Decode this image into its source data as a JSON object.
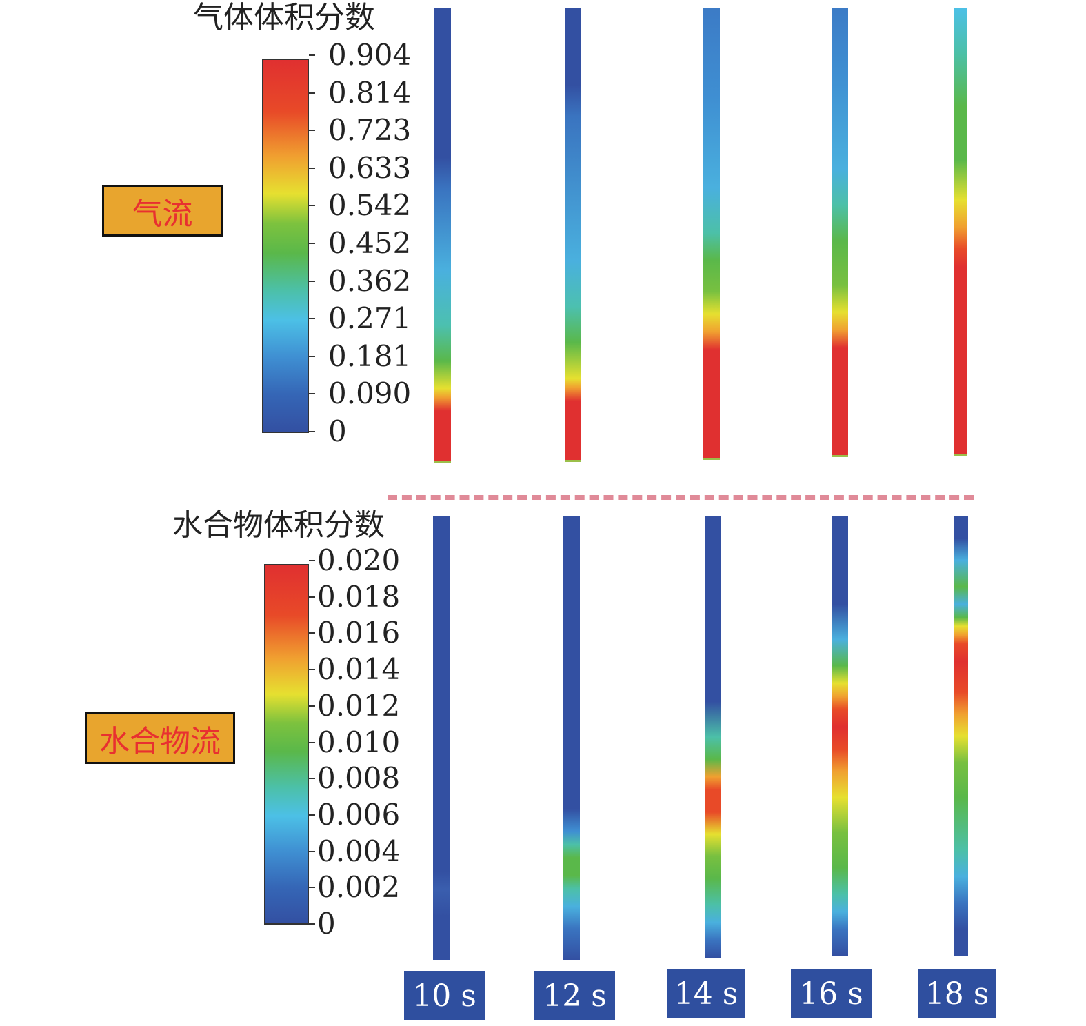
{
  "gas_panel": {
    "title": "气体体积分数",
    "tag": "气流",
    "ticks": [
      "0.904",
      "0.814",
      "0.723",
      "0.633",
      "0.542",
      "0.452",
      "0.362",
      "0.271",
      "0.181",
      "0.090",
      "0"
    ]
  },
  "hydrate_panel": {
    "title": "水合物体积分数",
    "tag": "水合物流",
    "ticks": [
      "0.020",
      "0.018",
      "0.016",
      "0.014",
      "0.012",
      "0.010",
      "0.008",
      "0.006",
      "0.004",
      "0.002",
      "0"
    ]
  },
  "time_labels": [
    "10 s",
    "12 s",
    "14 s",
    "16 s",
    "18 s"
  ],
  "colors": {
    "colormap": [
      "#3350a2",
      "#3c7bc6",
      "#4ab0de",
      "#4cc0c0",
      "#5ab84a",
      "#78c040",
      "#e6e030",
      "#f0a030",
      "#e84a28",
      "#e03030"
    ],
    "tag_fill": "#e8a52e",
    "tag_text": "#e83030",
    "time_tag_fill": "#2f4f9f",
    "divider": "#e08a98"
  }
}
